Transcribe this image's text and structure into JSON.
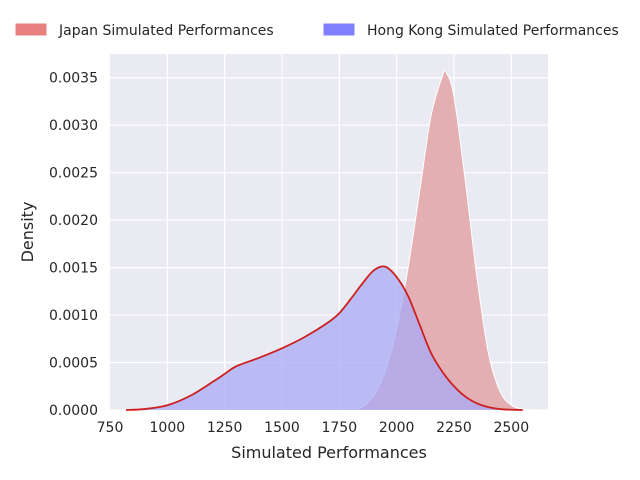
{
  "chart_data": {
    "type": "area",
    "title": "",
    "xlabel": "Simulated Performances",
    "ylabel": "Density",
    "xlim": [
      750,
      2660
    ],
    "ylim": [
      0,
      0.00375
    ],
    "xticks": [
      750,
      1000,
      1250,
      1500,
      1750,
      2000,
      2250,
      2500
    ],
    "yticks": [
      0,
      0.0005,
      0.001,
      0.0015,
      0.002,
      0.0025,
      0.003,
      0.0035
    ],
    "xtick_labels": [
      "750",
      "1000",
      "1250",
      "1500",
      "1750",
      "2000",
      "2250",
      "2500"
    ],
    "ytick_labels": [
      "0.0000",
      "0.0005",
      "0.0010",
      "0.0015",
      "0.0020",
      "0.0025",
      "0.0030",
      "0.0035"
    ],
    "grid": true,
    "legend_position": "top",
    "series": [
      {
        "name": "Japan Simulated Performances",
        "fill_color": "#e2a4a8",
        "legend_color": "#e88080",
        "line_color": "#ffffff",
        "x": [
          1800,
          1850,
          1900,
          1950,
          2000,
          2050,
          2100,
          2150,
          2200,
          2215,
          2250,
          2300,
          2350,
          2400,
          2450,
          2500,
          2550,
          2600
        ],
        "y": [
          0,
          3e-05,
          0.00015,
          0.0004,
          0.00085,
          0.0015,
          0.0023,
          0.0031,
          0.00352,
          0.00356,
          0.0033,
          0.0024,
          0.0014,
          0.0006,
          0.0002,
          5e-05,
          1e-05,
          0
        ]
      },
      {
        "name": "Hong Kong Simulated Performances",
        "fill_color": "#aaaaf5",
        "legend_color": "#8080ff",
        "line_color": "#cc2020",
        "x": [
          820,
          900,
          1000,
          1100,
          1200,
          1250,
          1300,
          1400,
          1500,
          1600,
          1700,
          1750,
          1800,
          1850,
          1900,
          1950,
          2000,
          2050,
          2100,
          2150,
          2200,
          2250,
          2300,
          2350,
          2400,
          2450,
          2500,
          2550
        ],
        "y": [
          0,
          1e-05,
          5e-05,
          0.00015,
          0.0003,
          0.00038,
          0.00046,
          0.00055,
          0.00065,
          0.00077,
          0.00092,
          0.00102,
          0.00117,
          0.00133,
          0.00147,
          0.00151,
          0.0014,
          0.0012,
          0.0009,
          0.0006,
          0.0004,
          0.00025,
          0.00014,
          7e-05,
          3e-05,
          1e-05,
          3e-06,
          0
        ]
      }
    ]
  }
}
